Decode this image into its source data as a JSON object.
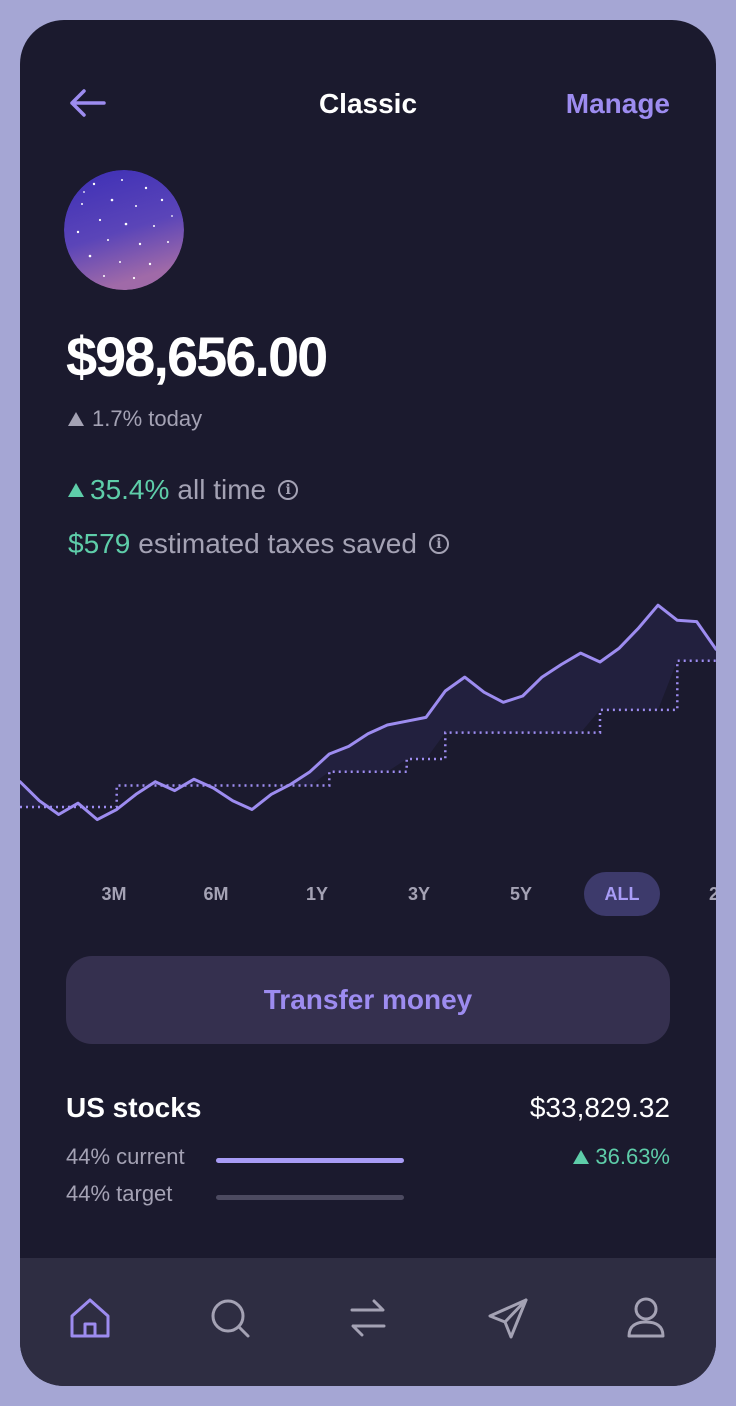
{
  "header": {
    "title": "Classic",
    "manage_label": "Manage"
  },
  "portfolio": {
    "balance": "$98,656.00",
    "today_change": "1.7% today",
    "all_time_value": "35.4%",
    "all_time_label": "all time",
    "taxes_value": "$579",
    "taxes_label": "estimated taxes saved"
  },
  "chart_data": {
    "type": "line",
    "title": "",
    "xlabel": "",
    "ylabel": "",
    "series": [
      {
        "name": "portfolio",
        "style": "solid",
        "values": [
          70,
          55,
          44,
          53,
          40,
          48,
          60,
          70,
          63,
          72,
          65,
          55,
          48,
          60,
          68,
          78,
          92,
          98,
          108,
          115,
          118,
          121,
          142,
          153,
          141,
          133,
          138,
          153,
          163,
          172,
          165,
          176,
          192,
          210,
          198,
          197,
          175
        ]
      },
      {
        "name": "deposits",
        "style": "dotted",
        "values": [
          50,
          50,
          50,
          50,
          50,
          67,
          67,
          67,
          67,
          67,
          67,
          67,
          67,
          67,
          67,
          67,
          78,
          78,
          78,
          78,
          88,
          88,
          109,
          109,
          109,
          109,
          109,
          109,
          109,
          109,
          127,
          127,
          127,
          127,
          166,
          166,
          166
        ]
      }
    ]
  },
  "ranges": {
    "items": [
      {
        "label": "3M"
      },
      {
        "label": "6M"
      },
      {
        "label": "1Y"
      },
      {
        "label": "3Y"
      },
      {
        "label": "5Y"
      },
      {
        "label": "ALL"
      },
      {
        "label": "2"
      }
    ],
    "active": "ALL"
  },
  "transfer_label": "Transfer money",
  "holdings": {
    "name": "US stocks",
    "value": "$33,829.32",
    "current_label": "44% current",
    "current_fraction": 0.44,
    "target_label": "44% target",
    "target_fraction": 0.44,
    "change": "36.63%"
  },
  "nav": {
    "items": [
      {
        "icon": "home-icon",
        "active": true
      },
      {
        "icon": "search-icon",
        "active": false
      },
      {
        "icon": "transfer-icon",
        "active": false
      },
      {
        "icon": "send-icon",
        "active": false
      },
      {
        "icon": "profile-icon",
        "active": false
      }
    ]
  },
  "colors": {
    "background": "#1b1a2e",
    "accent": "#9d8cf0",
    "positive": "#5ecda9",
    "muted": "#a4a2b4",
    "nav_bg": "#2e2d42"
  }
}
